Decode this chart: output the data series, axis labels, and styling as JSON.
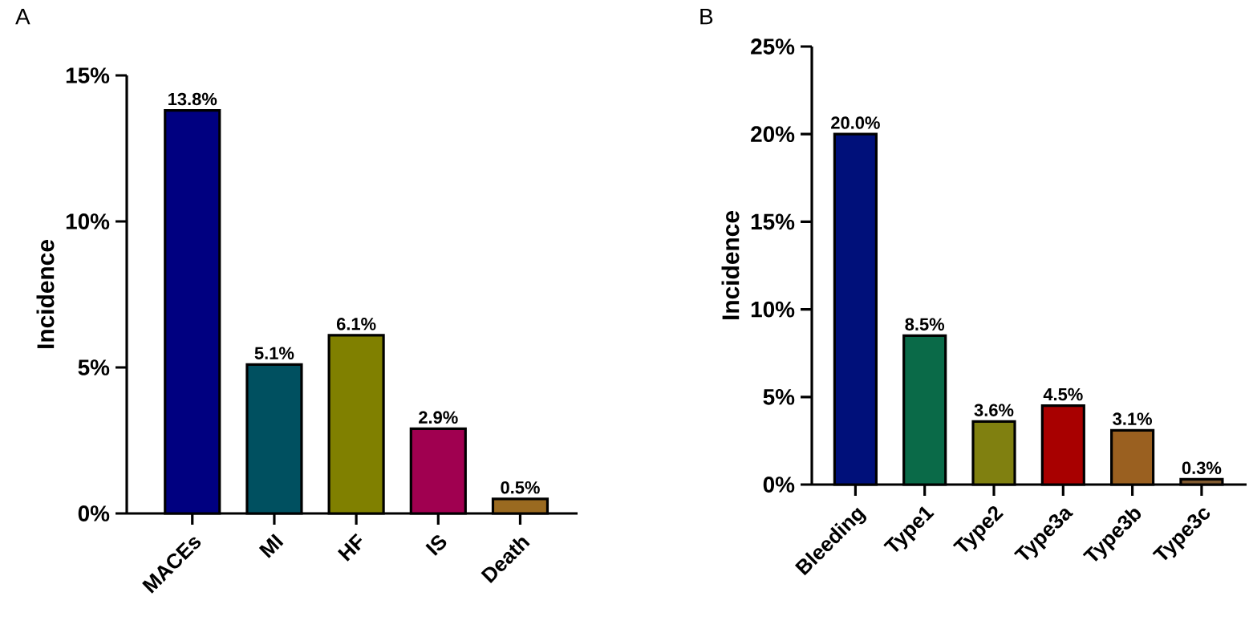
{
  "chart_data": [
    {
      "type": "bar",
      "title": "A",
      "ylabel": "Incidence",
      "categories": [
        "MACEs",
        "MI",
        "HF",
        "IS",
        "Death"
      ],
      "values": [
        13.8,
        5.1,
        6.1,
        2.9,
        0.5
      ],
      "value_labels": [
        "13.8%",
        "5.1%",
        "6.1%",
        "2.9%",
        "0.5%"
      ],
      "colors": [
        "#000080",
        "#005060",
        "#808000",
        "#a00050",
        "#9a6a20"
      ],
      "ylim": [
        0,
        15
      ],
      "yticks": [
        {
          "value": 0,
          "label": "0%"
        },
        {
          "value": 5,
          "label": "5%"
        },
        {
          "value": 10,
          "label": "10%"
        },
        {
          "value": 15,
          "label": "15%"
        }
      ]
    },
    {
      "type": "bar",
      "title": "B",
      "ylabel": "Incidence",
      "categories": [
        "Bleeding",
        "Type1",
        "Type2",
        "Type3a",
        "Type3b",
        "Type3c"
      ],
      "values": [
        20.0,
        8.5,
        3.6,
        4.5,
        3.1,
        0.3
      ],
      "value_labels": [
        "20.0%",
        "8.5%",
        "3.6%",
        "4.5%",
        "3.1%",
        "0.3%"
      ],
      "colors": [
        "#00107a",
        "#0a6a48",
        "#808010",
        "#a80000",
        "#9a6020",
        "#805a30"
      ],
      "ylim": [
        0,
        25
      ],
      "yticks": [
        {
          "value": 0,
          "label": "0%"
        },
        {
          "value": 5,
          "label": "5%"
        },
        {
          "value": 10,
          "label": "10%"
        },
        {
          "value": 15,
          "label": "15%"
        },
        {
          "value": 20,
          "label": "20%"
        },
        {
          "value": 25,
          "label": "25%"
        }
      ]
    }
  ]
}
